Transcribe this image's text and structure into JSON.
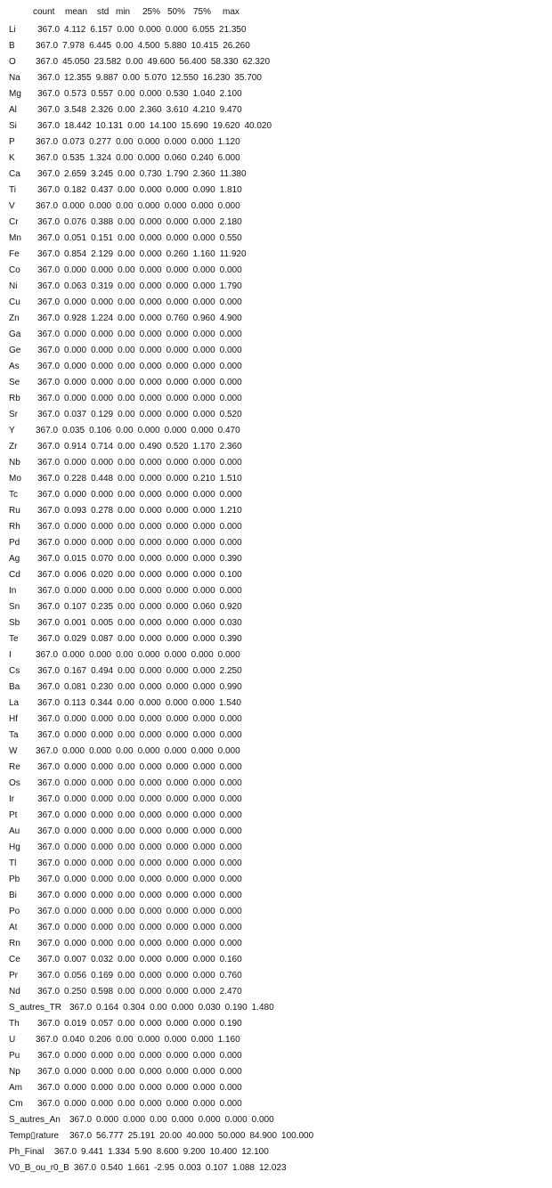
{
  "columns": [
    "count",
    "mean",
    "std",
    "min",
    "25%",
    "50%",
    "75%",
    "max"
  ],
  "rows": [
    {
      "name": "Li",
      "values": [
        "367.0",
        "4.112",
        "6.157",
        "0.00",
        "0.000",
        "0.000",
        "6.055",
        "21.350"
      ]
    },
    {
      "name": "B",
      "values": [
        "367.0",
        "7.978",
        "6.445",
        "0.00",
        "4.500",
        "5.880",
        "10.415",
        "26.260"
      ]
    },
    {
      "name": "O",
      "values": [
        "367.0",
        "45.050",
        "23.582",
        "0.00",
        "49.600",
        "56.400",
        "58.330",
        "62.320"
      ]
    },
    {
      "name": "Na",
      "values": [
        "367.0",
        "12.355",
        "9.887",
        "0.00",
        "5.070",
        "12.550",
        "16.230",
        "35.700"
      ]
    },
    {
      "name": "Mg",
      "values": [
        "367.0",
        "0.573",
        "0.557",
        "0.00",
        "0.000",
        "0.530",
        "1.040",
        "2.100"
      ]
    },
    {
      "name": "Al",
      "values": [
        "367.0",
        "3.548",
        "2.326",
        "0.00",
        "2.360",
        "3.610",
        "4.210",
        "9.470"
      ]
    },
    {
      "name": "Si",
      "values": [
        "367.0",
        "18.442",
        "10.131",
        "0.00",
        "14.100",
        "15.690",
        "19.620",
        "40.020"
      ]
    },
    {
      "name": "P",
      "values": [
        "367.0",
        "0.073",
        "0.277",
        "0.00",
        "0.000",
        "0.000",
        "0.000",
        "1.120"
      ]
    },
    {
      "name": "K",
      "values": [
        "367.0",
        "0.535",
        "1.324",
        "0.00",
        "0.000",
        "0.060",
        "0.240",
        "6.000"
      ]
    },
    {
      "name": "Ca",
      "values": [
        "367.0",
        "2.659",
        "3.245",
        "0.00",
        "0.730",
        "1.790",
        "2.360",
        "11.380"
      ]
    },
    {
      "name": "Ti",
      "values": [
        "367.0",
        "0.182",
        "0.437",
        "0.00",
        "0.000",
        "0.000",
        "0.090",
        "1.810"
      ]
    },
    {
      "name": "V",
      "values": [
        "367.0",
        "0.000",
        "0.000",
        "0.00",
        "0.000",
        "0.000",
        "0.000",
        "0.000"
      ]
    },
    {
      "name": "Cr",
      "values": [
        "367.0",
        "0.076",
        "0.388",
        "0.00",
        "0.000",
        "0.000",
        "0.000",
        "2.180"
      ]
    },
    {
      "name": "Mn",
      "values": [
        "367.0",
        "0.051",
        "0.151",
        "0.00",
        "0.000",
        "0.000",
        "0.000",
        "0.550"
      ]
    },
    {
      "name": "Fe",
      "values": [
        "367.0",
        "0.854",
        "2.129",
        "0.00",
        "0.000",
        "0.260",
        "1.160",
        "11.920"
      ]
    },
    {
      "name": "Co",
      "values": [
        "367.0",
        "0.000",
        "0.000",
        "0.00",
        "0.000",
        "0.000",
        "0.000",
        "0.000"
      ]
    },
    {
      "name": "Ni",
      "values": [
        "367.0",
        "0.063",
        "0.319",
        "0.00",
        "0.000",
        "0.000",
        "0.000",
        "1.790"
      ]
    },
    {
      "name": "Cu",
      "values": [
        "367.0",
        "0.000",
        "0.000",
        "0.00",
        "0.000",
        "0.000",
        "0.000",
        "0.000"
      ]
    },
    {
      "name": "Zn",
      "values": [
        "367.0",
        "0.928",
        "1.224",
        "0.00",
        "0.000",
        "0.760",
        "0.960",
        "4.900"
      ]
    },
    {
      "name": "Ga",
      "values": [
        "367.0",
        "0.000",
        "0.000",
        "0.00",
        "0.000",
        "0.000",
        "0.000",
        "0.000"
      ]
    },
    {
      "name": "Ge",
      "values": [
        "367.0",
        "0.000",
        "0.000",
        "0.00",
        "0.000",
        "0.000",
        "0.000",
        "0.000"
      ]
    },
    {
      "name": "As",
      "values": [
        "367.0",
        "0.000",
        "0.000",
        "0.00",
        "0.000",
        "0.000",
        "0.000",
        "0.000"
      ]
    },
    {
      "name": "Se",
      "values": [
        "367.0",
        "0.000",
        "0.000",
        "0.00",
        "0.000",
        "0.000",
        "0.000",
        "0.000"
      ]
    },
    {
      "name": "Rb",
      "values": [
        "367.0",
        "0.000",
        "0.000",
        "0.00",
        "0.000",
        "0.000",
        "0.000",
        "0.000"
      ]
    },
    {
      "name": "Sr",
      "values": [
        "367.0",
        "0.037",
        "0.129",
        "0.00",
        "0.000",
        "0.000",
        "0.000",
        "0.520"
      ]
    },
    {
      "name": "Y",
      "values": [
        "367.0",
        "0.035",
        "0.106",
        "0.00",
        "0.000",
        "0.000",
        "0.000",
        "0.470"
      ]
    },
    {
      "name": "Zr",
      "values": [
        "367.0",
        "0.914",
        "0.714",
        "0.00",
        "0.490",
        "0.520",
        "1.170",
        "2.360"
      ]
    },
    {
      "name": "Nb",
      "values": [
        "367.0",
        "0.000",
        "0.000",
        "0.00",
        "0.000",
        "0.000",
        "0.000",
        "0.000"
      ]
    },
    {
      "name": "Mo",
      "values": [
        "367.0",
        "0.228",
        "0.448",
        "0.00",
        "0.000",
        "0.000",
        "0.210",
        "1.510"
      ]
    },
    {
      "name": "Tc",
      "values": [
        "367.0",
        "0.000",
        "0.000",
        "0.00",
        "0.000",
        "0.000",
        "0.000",
        "0.000"
      ]
    },
    {
      "name": "Ru",
      "values": [
        "367.0",
        "0.093",
        "0.278",
        "0.00",
        "0.000",
        "0.000",
        "0.000",
        "1.210"
      ]
    },
    {
      "name": "Rh",
      "values": [
        "367.0",
        "0.000",
        "0.000",
        "0.00",
        "0.000",
        "0.000",
        "0.000",
        "0.000"
      ]
    },
    {
      "name": "Pd",
      "values": [
        "367.0",
        "0.000",
        "0.000",
        "0.00",
        "0.000",
        "0.000",
        "0.000",
        "0.000"
      ]
    },
    {
      "name": "Ag",
      "values": [
        "367.0",
        "0.015",
        "0.070",
        "0.00",
        "0.000",
        "0.000",
        "0.000",
        "0.390"
      ]
    },
    {
      "name": "Cd",
      "values": [
        "367.0",
        "0.006",
        "0.020",
        "0.00",
        "0.000",
        "0.000",
        "0.000",
        "0.100"
      ]
    },
    {
      "name": "In",
      "values": [
        "367.0",
        "0.000",
        "0.000",
        "0.00",
        "0.000",
        "0.000",
        "0.000",
        "0.000"
      ]
    },
    {
      "name": "Sn",
      "values": [
        "367.0",
        "0.107",
        "0.235",
        "0.00",
        "0.000",
        "0.000",
        "0.060",
        "0.920"
      ]
    },
    {
      "name": "Sb",
      "values": [
        "367.0",
        "0.001",
        "0.005",
        "0.00",
        "0.000",
        "0.000",
        "0.000",
        "0.030"
      ]
    },
    {
      "name": "Te",
      "values": [
        "367.0",
        "0.029",
        "0.087",
        "0.00",
        "0.000",
        "0.000",
        "0.000",
        "0.390"
      ]
    },
    {
      "name": "I",
      "values": [
        "367.0",
        "0.000",
        "0.000",
        "0.00",
        "0.000",
        "0.000",
        "0.000",
        "0.000"
      ]
    },
    {
      "name": "Cs",
      "values": [
        "367.0",
        "0.167",
        "0.494",
        "0.00",
        "0.000",
        "0.000",
        "0.000",
        "2.250"
      ]
    },
    {
      "name": "Ba",
      "values": [
        "367.0",
        "0.081",
        "0.230",
        "0.00",
        "0.000",
        "0.000",
        "0.000",
        "0.990"
      ]
    },
    {
      "name": "La",
      "values": [
        "367.0",
        "0.113",
        "0.344",
        "0.00",
        "0.000",
        "0.000",
        "0.000",
        "1.540"
      ]
    },
    {
      "name": "Hf",
      "values": [
        "367.0",
        "0.000",
        "0.000",
        "0.00",
        "0.000",
        "0.000",
        "0.000",
        "0.000"
      ]
    },
    {
      "name": "Ta",
      "values": [
        "367.0",
        "0.000",
        "0.000",
        "0.00",
        "0.000",
        "0.000",
        "0.000",
        "0.000"
      ]
    },
    {
      "name": "W",
      "values": [
        "367.0",
        "0.000",
        "0.000",
        "0.00",
        "0.000",
        "0.000",
        "0.000",
        "0.000"
      ]
    },
    {
      "name": "Re",
      "values": [
        "367.0",
        "0.000",
        "0.000",
        "0.00",
        "0.000",
        "0.000",
        "0.000",
        "0.000"
      ]
    },
    {
      "name": "Os",
      "values": [
        "367.0",
        "0.000",
        "0.000",
        "0.00",
        "0.000",
        "0.000",
        "0.000",
        "0.000"
      ]
    },
    {
      "name": "Ir",
      "values": [
        "367.0",
        "0.000",
        "0.000",
        "0.00",
        "0.000",
        "0.000",
        "0.000",
        "0.000"
      ]
    },
    {
      "name": "Pt",
      "values": [
        "367.0",
        "0.000",
        "0.000",
        "0.00",
        "0.000",
        "0.000",
        "0.000",
        "0.000"
      ]
    },
    {
      "name": "Au",
      "values": [
        "367.0",
        "0.000",
        "0.000",
        "0.00",
        "0.000",
        "0.000",
        "0.000",
        "0.000"
      ]
    },
    {
      "name": "Hg",
      "values": [
        "367.0",
        "0.000",
        "0.000",
        "0.00",
        "0.000",
        "0.000",
        "0.000",
        "0.000"
      ]
    },
    {
      "name": "Tl",
      "values": [
        "367.0",
        "0.000",
        "0.000",
        "0.00",
        "0.000",
        "0.000",
        "0.000",
        "0.000"
      ]
    },
    {
      "name": "Pb",
      "values": [
        "367.0",
        "0.000",
        "0.000",
        "0.00",
        "0.000",
        "0.000",
        "0.000",
        "0.000"
      ]
    },
    {
      "name": "Bi",
      "values": [
        "367.0",
        "0.000",
        "0.000",
        "0.00",
        "0.000",
        "0.000",
        "0.000",
        "0.000"
      ]
    },
    {
      "name": "Po",
      "values": [
        "367.0",
        "0.000",
        "0.000",
        "0.00",
        "0.000",
        "0.000",
        "0.000",
        "0.000"
      ]
    },
    {
      "name": "At",
      "values": [
        "367.0",
        "0.000",
        "0.000",
        "0.00",
        "0.000",
        "0.000",
        "0.000",
        "0.000"
      ]
    },
    {
      "name": "Rn",
      "values": [
        "367.0",
        "0.000",
        "0.000",
        "0.00",
        "0.000",
        "0.000",
        "0.000",
        "0.000"
      ]
    },
    {
      "name": "Ce",
      "values": [
        "367.0",
        "0.007",
        "0.032",
        "0.00",
        "0.000",
        "0.000",
        "0.000",
        "0.160"
      ]
    },
    {
      "name": "Pr",
      "values": [
        "367.0",
        "0.056",
        "0.169",
        "0.00",
        "0.000",
        "0.000",
        "0.000",
        "0.760"
      ]
    },
    {
      "name": "Nd",
      "values": [
        "367.0",
        "0.250",
        "0.598",
        "0.00",
        "0.000",
        "0.000",
        "0.000",
        "2.470"
      ]
    },
    {
      "name": "S_autres_TR",
      "values": [
        "367.0",
        "0.164",
        "0.304",
        "0.00",
        "0.000",
        "0.030",
        "0.190",
        "1.480"
      ]
    },
    {
      "name": "Th",
      "values": [
        "367.0",
        "0.019",
        "0.057",
        "0.00",
        "0.000",
        "0.000",
        "0.000",
        "0.190"
      ]
    },
    {
      "name": "U",
      "values": [
        "367.0",
        "0.040",
        "0.206",
        "0.00",
        "0.000",
        "0.000",
        "0.000",
        "1.160"
      ]
    },
    {
      "name": "Pu",
      "values": [
        "367.0",
        "0.000",
        "0.000",
        "0.00",
        "0.000",
        "0.000",
        "0.000",
        "0.000"
      ]
    },
    {
      "name": "Np",
      "values": [
        "367.0",
        "0.000",
        "0.000",
        "0.00",
        "0.000",
        "0.000",
        "0.000",
        "0.000"
      ]
    },
    {
      "name": "Am",
      "values": [
        "367.0",
        "0.000",
        "0.000",
        "0.00",
        "0.000",
        "0.000",
        "0.000",
        "0.000"
      ]
    },
    {
      "name": "Cm",
      "values": [
        "367.0",
        "0.000",
        "0.000",
        "0.00",
        "0.000",
        "0.000",
        "0.000",
        "0.000"
      ]
    },
    {
      "name": "S_autres_An",
      "values": [
        "367.0",
        "0.000",
        "0.000",
        "0.00",
        "0.000",
        "0.000",
        "0.000",
        "0.000"
      ]
    },
    {
      "name": "Temp▯rature",
      "values": [
        "367.0",
        "56.777",
        "25.191",
        "20.00",
        "40.000",
        "50.000",
        "84.900",
        "100.000"
      ]
    },
    {
      "name": "Ph_Final",
      "values": [
        "367.0",
        "9.441",
        "1.334",
        "5.90",
        "8.600",
        "9.200",
        "10.400",
        "12.100"
      ]
    },
    {
      "name": "V0_B_ou_r0_B",
      "values": [
        "367.0",
        "0.540",
        "1.661",
        "-2.95",
        "0.003",
        "0.107",
        "1.088",
        "12.023"
      ]
    }
  ]
}
